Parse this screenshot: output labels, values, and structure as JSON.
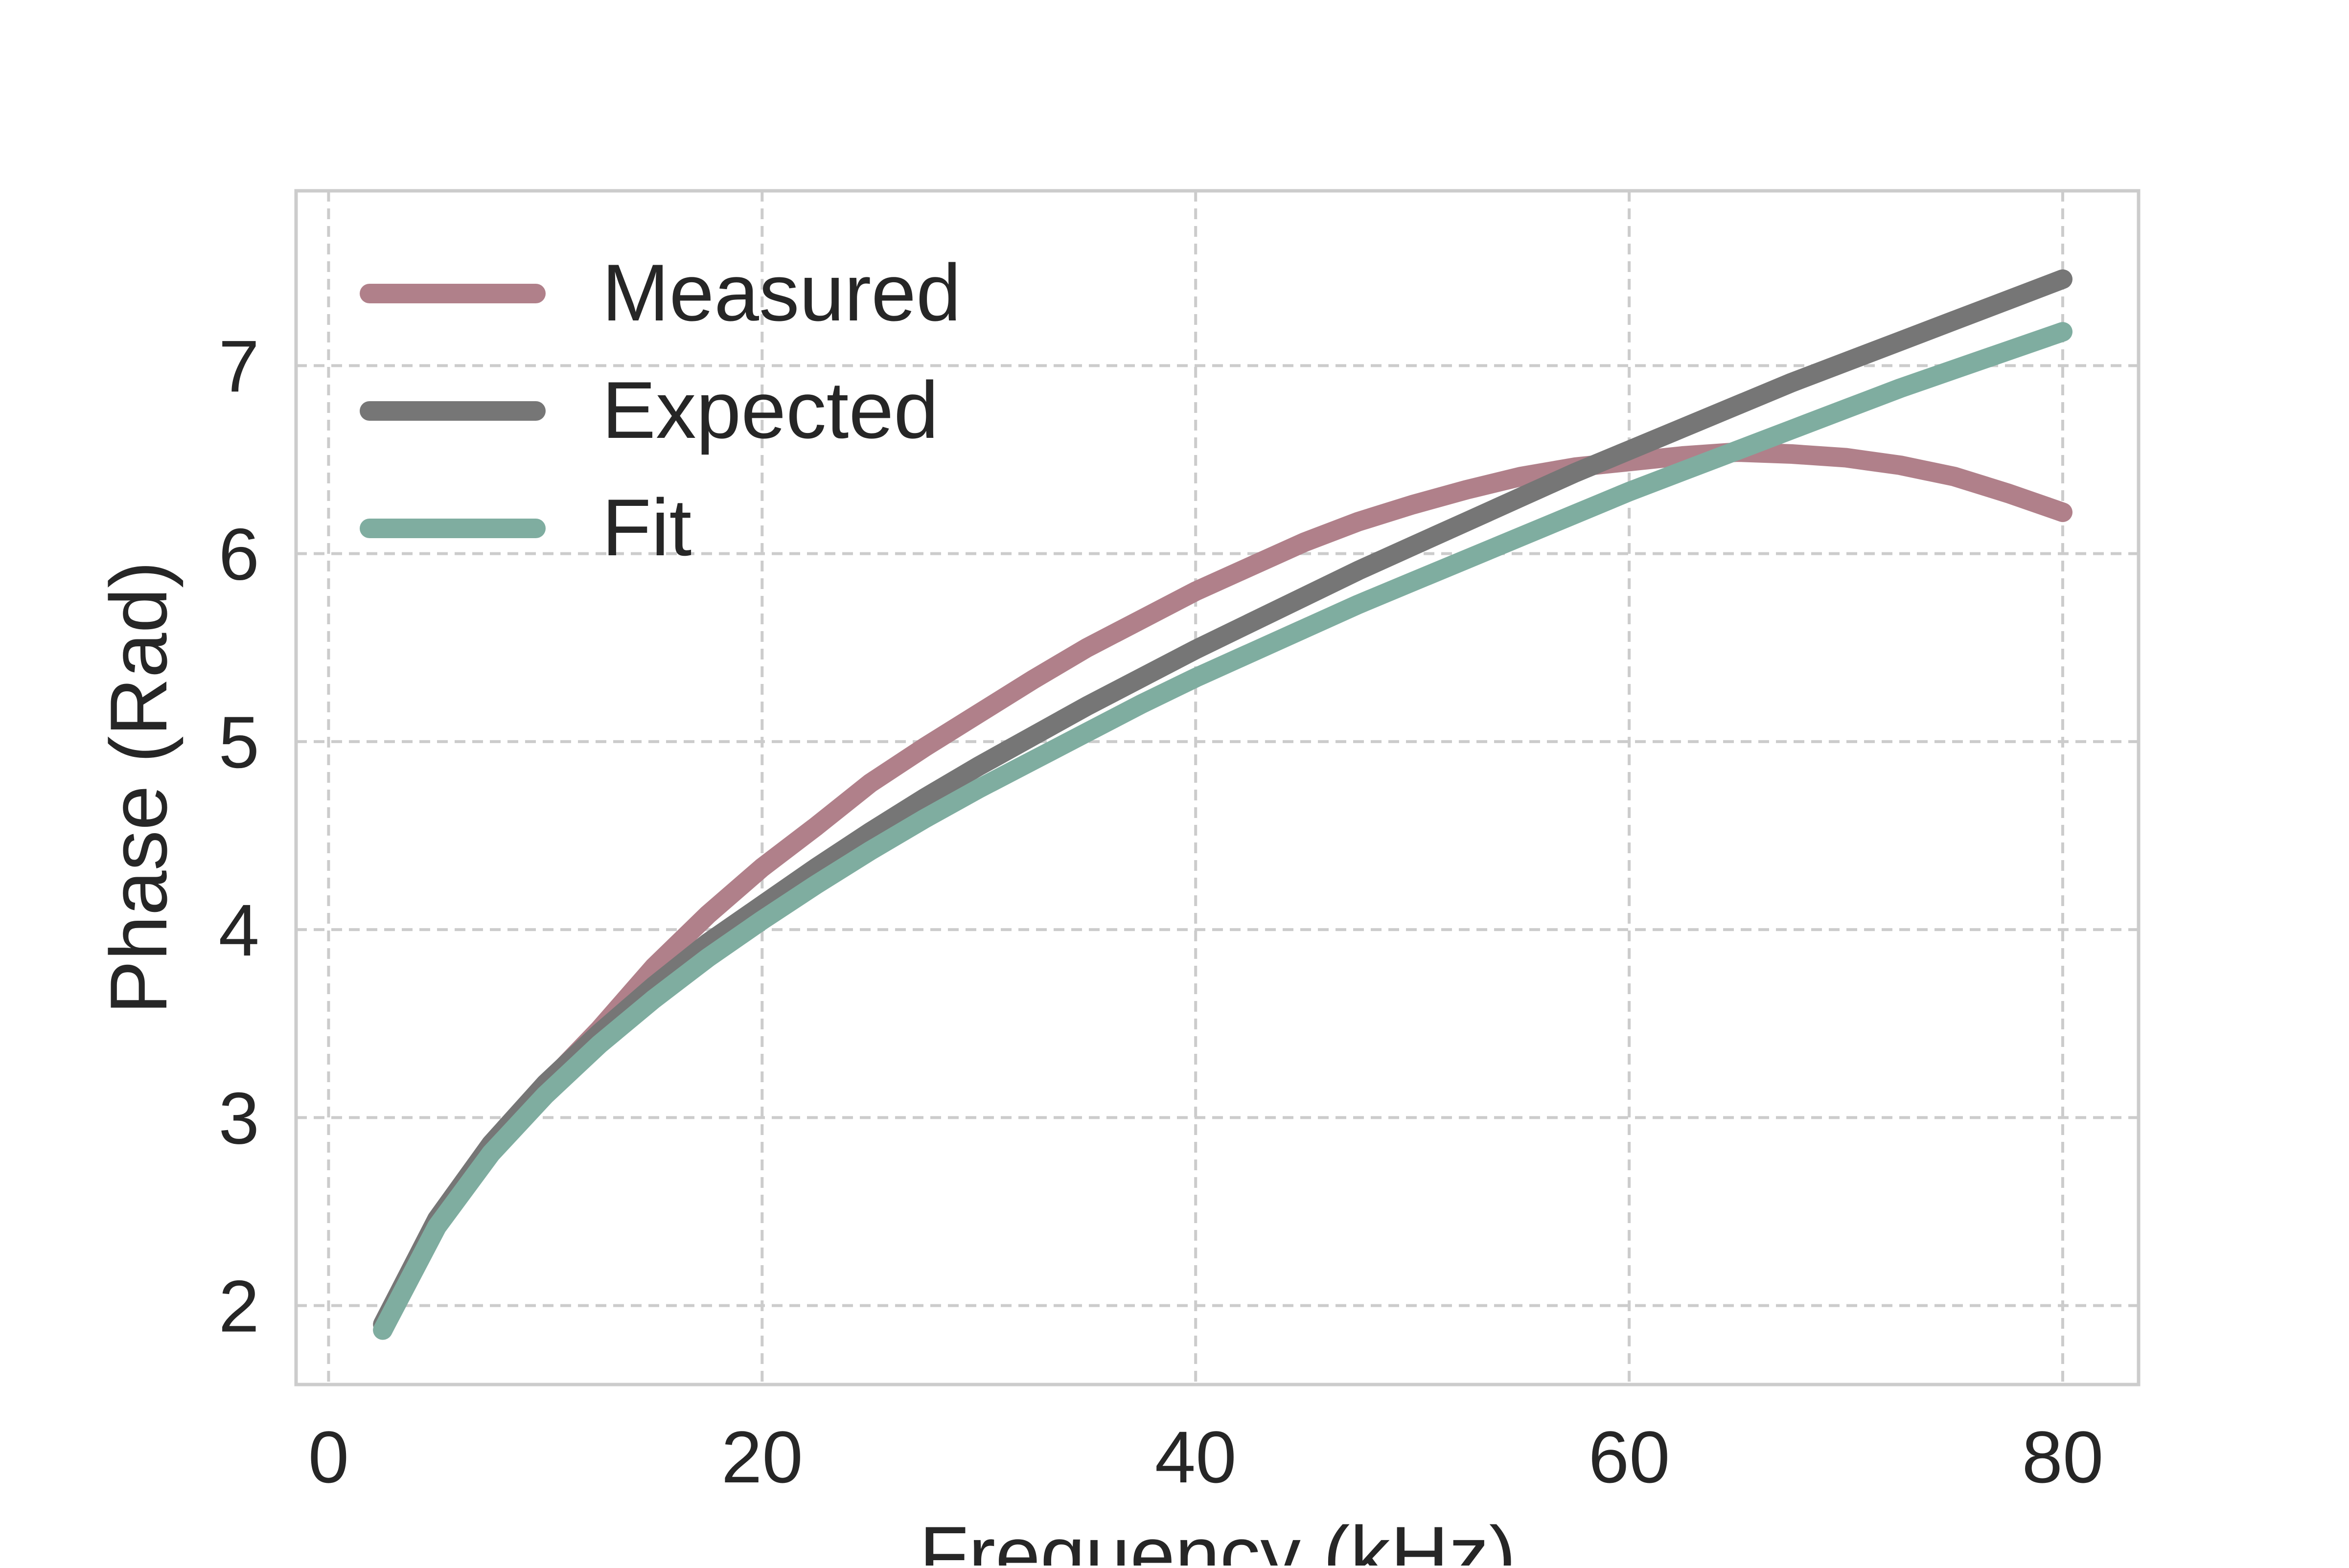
{
  "chart_data": {
    "type": "line",
    "title": "",
    "xlabel": "Frequency (kHz)",
    "ylabel": "Phase (Rad)",
    "xlim": [
      -1.5,
      83.5
    ],
    "ylim": [
      1.58,
      7.93
    ],
    "xticks": [
      0,
      20,
      40,
      60,
      80
    ],
    "yticks": [
      2,
      3,
      4,
      5,
      6,
      7
    ],
    "grid": true,
    "grid_style": "dashed",
    "legend_position": "top-left",
    "series": [
      {
        "name": "Measured",
        "color": "#b0808a",
        "x": [
          2.5,
          5,
          7.5,
          10,
          12.5,
          15,
          17.5,
          20,
          22.5,
          25,
          27.5,
          30,
          32.5,
          35,
          37.5,
          40,
          42.5,
          45,
          47.5,
          50,
          52.5,
          55,
          57.5,
          60,
          62.5,
          65,
          67.5,
          70,
          72.5,
          75,
          77.5,
          80
        ],
        "y": [
          1.87,
          2.45,
          2.85,
          3.17,
          3.47,
          3.8,
          4.08,
          4.33,
          4.55,
          4.78,
          4.97,
          5.15,
          5.33,
          5.5,
          5.65,
          5.8,
          5.93,
          6.06,
          6.17,
          6.26,
          6.34,
          6.41,
          6.46,
          6.49,
          6.52,
          6.54,
          6.53,
          6.51,
          6.47,
          6.41,
          6.32,
          6.22
        ]
      },
      {
        "name": "Expected",
        "color": "#767676",
        "x": [
          2.5,
          5,
          7.5,
          10,
          12.5,
          15,
          17.5,
          20,
          22.5,
          25,
          27.5,
          30,
          32.5,
          35,
          37.5,
          40,
          42.5,
          45,
          47.5,
          50,
          52.5,
          55,
          57.5,
          60,
          62.5,
          65,
          67.5,
          70,
          72.5,
          75,
          77.5,
          80
        ],
        "y": [
          1.9,
          2.46,
          2.86,
          3.18,
          3.45,
          3.7,
          3.93,
          4.13,
          4.33,
          4.52,
          4.7,
          4.87,
          5.03,
          5.19,
          5.34,
          5.49,
          5.63,
          5.77,
          5.91,
          6.04,
          6.17,
          6.3,
          6.43,
          6.55,
          6.67,
          6.79,
          6.91,
          7.02,
          7.13,
          7.24,
          7.35,
          7.46
        ]
      },
      {
        "name": "Fit",
        "color": "#7fada0",
        "x": [
          2.5,
          5,
          7.5,
          10,
          12.5,
          15,
          17.5,
          20,
          22.5,
          25,
          27.5,
          30,
          32.5,
          35,
          37.5,
          40,
          42.5,
          45,
          47.5,
          50,
          52.5,
          55,
          57.5,
          60,
          62.5,
          65,
          67.5,
          70,
          72.5,
          75,
          77.5,
          80
        ],
        "y": [
          1.87,
          2.42,
          2.81,
          3.12,
          3.39,
          3.63,
          3.85,
          4.05,
          4.24,
          4.42,
          4.59,
          4.75,
          4.9,
          5.05,
          5.2,
          5.34,
          5.47,
          5.6,
          5.73,
          5.85,
          5.97,
          6.09,
          6.21,
          6.33,
          6.44,
          6.55,
          6.66,
          6.77,
          6.88,
          6.98,
          7.08,
          7.18
        ]
      }
    ]
  }
}
